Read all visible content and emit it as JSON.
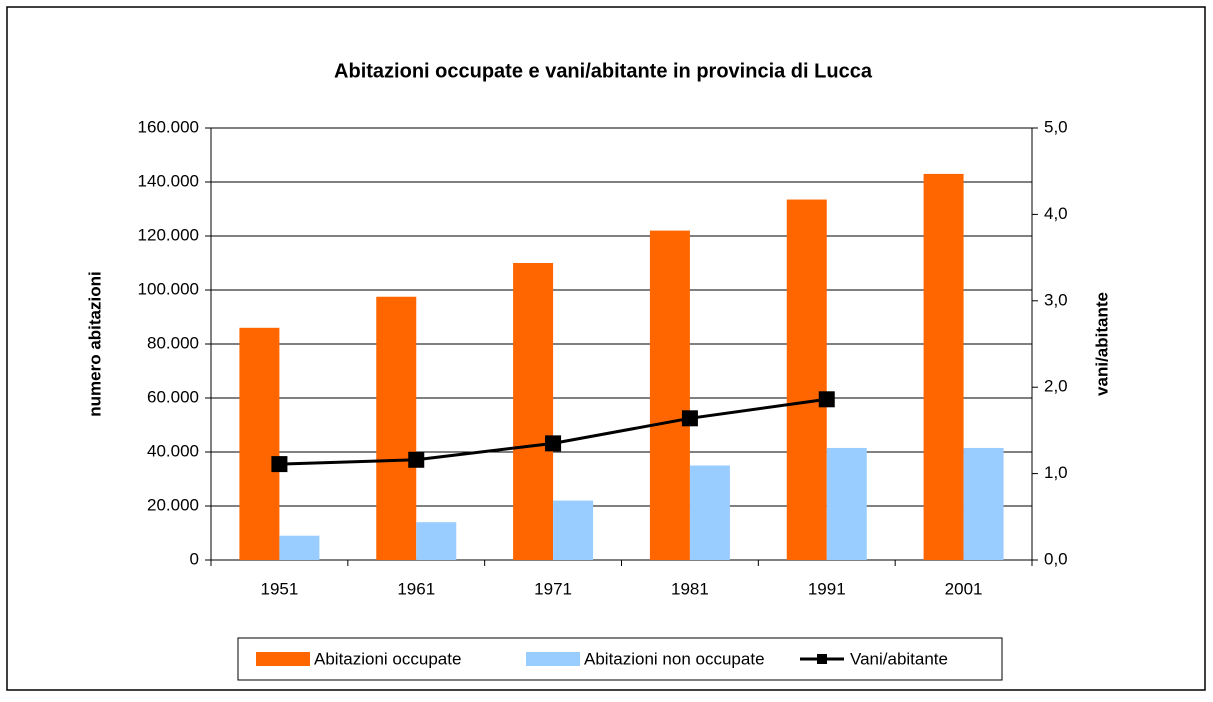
{
  "chart_data": {
    "type": "bar",
    "title": "Abitazioni occupate e vani/abitante in provincia di Lucca",
    "ylabel": "numero abitazioni",
    "y2label": "vani/abitante",
    "categories": [
      "1951",
      "1961",
      "1971",
      "1981",
      "1991",
      "2001"
    ],
    "series": [
      {
        "name": "Abitazioni occupate",
        "type": "bar",
        "color": "#ff6600",
        "values": [
          86000,
          97500,
          110000,
          122000,
          133500,
          143000
        ]
      },
      {
        "name": "Abitazioni non occupate",
        "type": "bar",
        "color": "#99ccff",
        "values": [
          9000,
          14000,
          22000,
          35000,
          41500,
          41500
        ]
      },
      {
        "name": "Vani/abitante",
        "type": "line",
        "axis": "y2",
        "color": "#000000",
        "values": [
          1.11,
          1.16,
          1.35,
          1.64,
          1.86,
          null
        ]
      }
    ],
    "ylim": [
      0,
      160000
    ],
    "yticks": [
      0,
      {
        "value": 20000,
        "label": "20.000"
      },
      {
        "value": 40000,
        "label": "40.000"
      },
      {
        "value": 60000,
        "label": "60.000"
      },
      {
        "value": 80000,
        "label": "80.000"
      },
      {
        "value": 100000,
        "label": "100.000"
      },
      {
        "value": 120000,
        "label": "120.000"
      },
      {
        "value": 140000,
        "label": "140.000"
      },
      {
        "value": 160000,
        "label": "160.000"
      }
    ],
    "y2lim": [
      0,
      5
    ],
    "y2ticks": [
      {
        "value": 0,
        "label": "0,0"
      },
      {
        "value": 1,
        "label": "1,0"
      },
      {
        "value": 2,
        "label": "2,0"
      },
      {
        "value": 3,
        "label": "3,0"
      },
      {
        "value": 4,
        "label": "4,0"
      },
      {
        "value": 5,
        "label": "5,0"
      }
    ],
    "grid": true,
    "legend": "bottom"
  }
}
